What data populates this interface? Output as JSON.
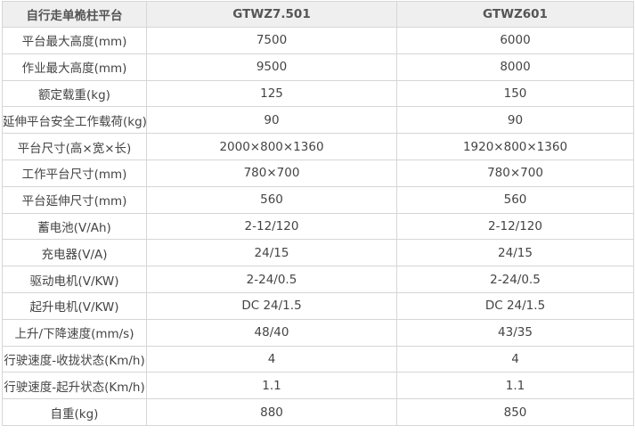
{
  "table": {
    "header": [
      "自行走单桅柱平台",
      "GTWZ7.501",
      "GTWZ601"
    ],
    "rows": [
      [
        "平台最大高度(mm)",
        "7500",
        "6000"
      ],
      [
        "作业最大高度(mm)",
        "9500",
        "8000"
      ],
      [
        "额定载重(kg)",
        "125",
        "150"
      ],
      [
        "延伸平台安全工作载荷(kg)",
        "90",
        "90"
      ],
      [
        "平台尺寸(高×宽×长)",
        "2000×800×1360",
        "1920×800×1360"
      ],
      [
        "工作平台尺寸(mm)",
        "780×700",
        "780×700"
      ],
      [
        "平台延伸尺寸(mm)",
        "560",
        "560"
      ],
      [
        "蓄电池(V/Ah)",
        "2-12/120",
        "2-12/120"
      ],
      [
        "充电器(V/A)",
        "24/15",
        "24/15"
      ],
      [
        "驱动电机(V/KW)",
        "2-24/0.5",
        "2-24/0.5"
      ],
      [
        "起升电机(V/KW)",
        "DC 24/1.5",
        "DC 24/1.5"
      ],
      [
        "上升/下降速度(mm/s)",
        "48/40",
        "43/35"
      ],
      [
        "行驶速度-收拢状态(Km/h)",
        "4",
        "4"
      ],
      [
        "行驶速度-起升状态(Km/h)",
        "1.1",
        "1.1"
      ],
      [
        "自重(kg)",
        "880",
        "850"
      ]
    ]
  }
}
